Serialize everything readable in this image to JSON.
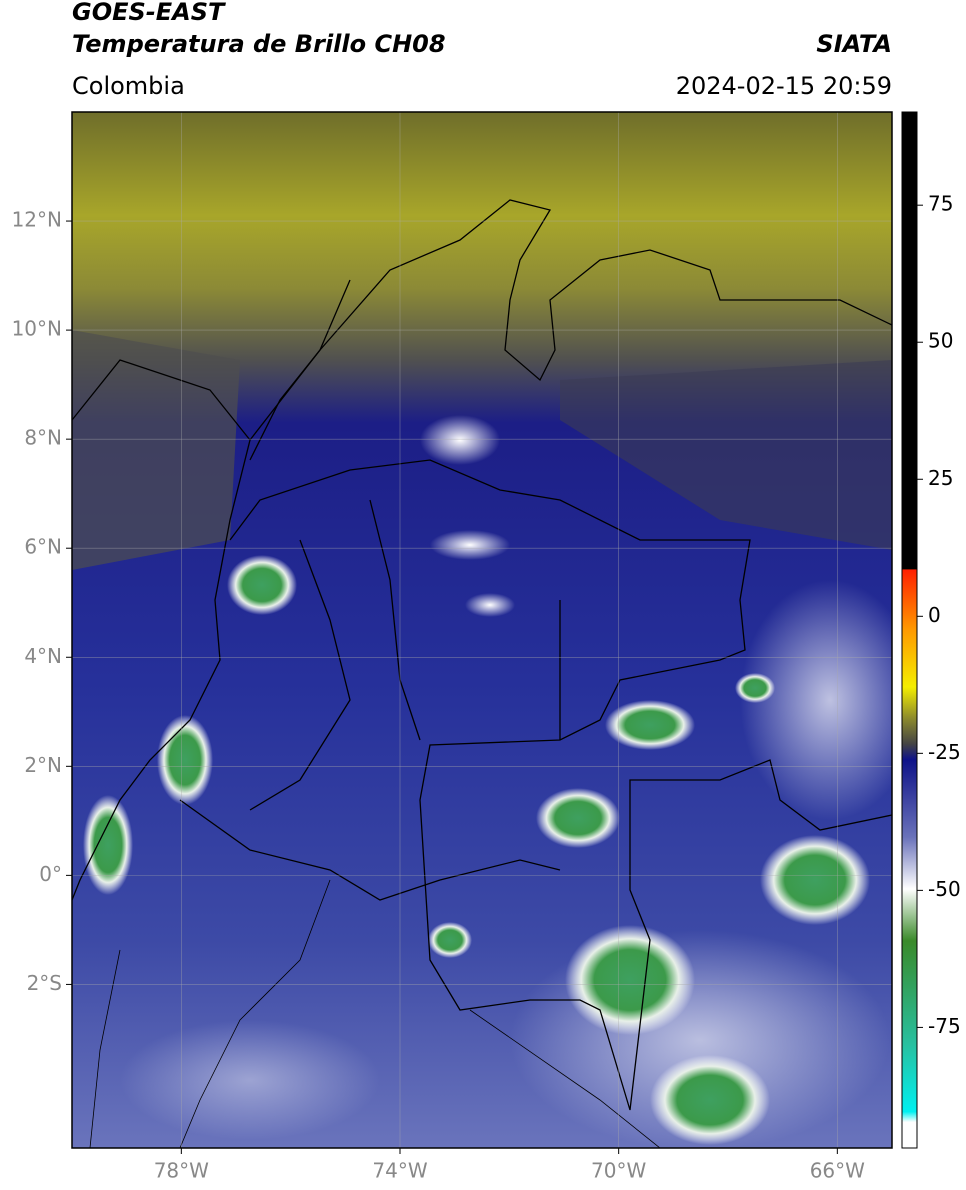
{
  "header": {
    "title": "GOES-EAST",
    "subtitle": "Temperatura de Brillo CH08",
    "region": "Colombia",
    "source": "SIATA",
    "datetime": "2024-02-15 20:59"
  },
  "map": {
    "xlim": [
      -80,
      -65
    ],
    "ylim": [
      -5,
      14
    ],
    "xticks": [
      {
        "value": -78,
        "label": "78°W"
      },
      {
        "value": -74,
        "label": "74°W"
      },
      {
        "value": -70,
        "label": "70°W"
      },
      {
        "value": -66,
        "label": "66°W"
      }
    ],
    "yticks": [
      {
        "value": 12,
        "label": "12°N"
      },
      {
        "value": 10,
        "label": "10°N"
      },
      {
        "value": 8,
        "label": "8°N"
      },
      {
        "value": 6,
        "label": "6°N"
      },
      {
        "value": 4,
        "label": "4°N"
      },
      {
        "value": 2,
        "label": "2°N"
      },
      {
        "value": 0,
        "label": "0°"
      },
      {
        "value": -2,
        "label": "2°S"
      }
    ],
    "grid": true
  },
  "colorbar": {
    "lim": [
      -97,
      92
    ],
    "ticks": [
      75,
      50,
      25,
      0,
      -25,
      -50,
      -75
    ]
  }
}
